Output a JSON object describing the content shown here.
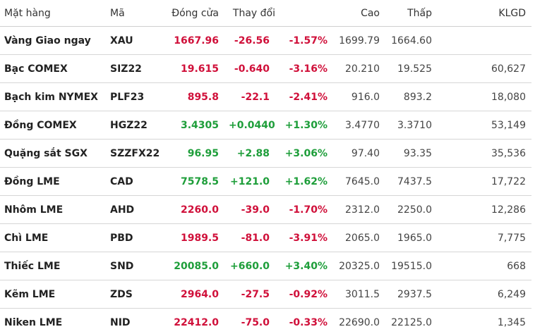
{
  "headers": [
    "Mặt hàng",
    "Mã",
    "Đóng cửa",
    "Thay đổi",
    "",
    "Cao",
    "Thấp",
    "KLGD"
  ],
  "colors": {
    "up": "#1e9e3a",
    "down": "#d0103a"
  },
  "rows": [
    {
      "name": "Vàng Giao ngay",
      "code": "XAU",
      "close": "1667.96",
      "change": "-26.56",
      "pct": "-1.57%",
      "high": "1699.79",
      "low": "1664.60",
      "volume": "",
      "dir": "down"
    },
    {
      "name": "Bạc COMEX",
      "code": "SIZ22",
      "close": "19.615",
      "change": "-0.640",
      "pct": "-3.16%",
      "high": "20.210",
      "low": "19.525",
      "volume": "60,627",
      "dir": "down"
    },
    {
      "name": "Bạch kim NYMEX",
      "code": "PLF23",
      "close": "895.8",
      "change": "-22.1",
      "pct": "-2.41%",
      "high": "916.0",
      "low": "893.2",
      "volume": "18,080",
      "dir": "down"
    },
    {
      "name": "Đồng COMEX",
      "code": "HGZ22",
      "close": "3.4305",
      "change": "+0.0440",
      "pct": "+1.30%",
      "high": "3.4770",
      "low": "3.3710",
      "volume": "53,149",
      "dir": "up"
    },
    {
      "name": "Quặng sắt SGX",
      "code": "SZZFX22",
      "close": "96.95",
      "change": "+2.88",
      "pct": "+3.06%",
      "high": "97.40",
      "low": "93.35",
      "volume": "35,536",
      "dir": "up"
    },
    {
      "name": "Đồng LME",
      "code": "CAD",
      "close": "7578.5",
      "change": "+121.0",
      "pct": "+1.62%",
      "high": "7645.0",
      "low": "7437.5",
      "volume": "17,722",
      "dir": "up"
    },
    {
      "name": "Nhôm LME",
      "code": "AHD",
      "close": "2260.0",
      "change": "-39.0",
      "pct": "-1.70%",
      "high": "2312.0",
      "low": "2250.0",
      "volume": "12,286",
      "dir": "down"
    },
    {
      "name": "Chì LME",
      "code": "PBD",
      "close": "1989.5",
      "change": "-81.0",
      "pct": "-3.91%",
      "high": "2065.0",
      "low": "1965.0",
      "volume": "7,775",
      "dir": "down"
    },
    {
      "name": "Thiếc LME",
      "code": "SND",
      "close": "20085.0",
      "change": "+660.0",
      "pct": "+3.40%",
      "high": "20325.0",
      "low": "19515.0",
      "volume": "668",
      "dir": "up"
    },
    {
      "name": "Kẽm LME",
      "code": "ZDS",
      "close": "2964.0",
      "change": "-27.5",
      "pct": "-0.92%",
      "high": "3011.5",
      "low": "2937.5",
      "volume": "6,249",
      "dir": "down"
    },
    {
      "name": "Niken LME",
      "code": "NID",
      "close": "22412.0",
      "change": "-75.0",
      "pct": "-0.33%",
      "high": "22690.0",
      "low": "22125.0",
      "volume": "1,345",
      "dir": "down"
    }
  ]
}
